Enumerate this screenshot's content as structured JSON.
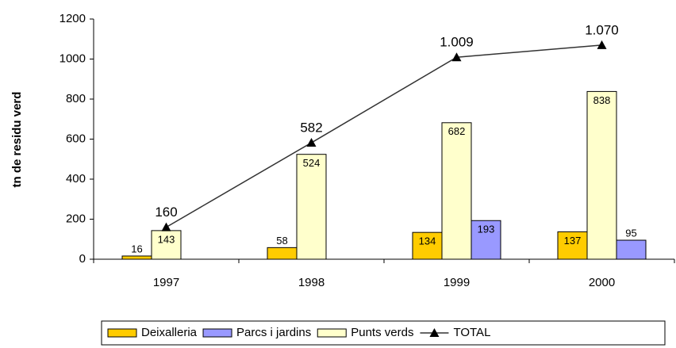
{
  "chart_data": {
    "type": "bar",
    "y_label": "tn de residu verd",
    "categories": [
      "1997",
      "1998",
      "1999",
      "2000"
    ],
    "series": [
      {
        "name": "Deixalleria",
        "color": "#ffcc00",
        "values": [
          16,
          58,
          134,
          137
        ]
      },
      {
        "name": "Parcs i jardins",
        "color": "#9999ff",
        "values": [
          null,
          null,
          193,
          95
        ]
      },
      {
        "name": "Punts verds",
        "color": "#ffffcc",
        "values": [
          143,
          524,
          682,
          838
        ]
      },
      {
        "name": "TOTAL",
        "type": "line",
        "color": "#333333",
        "values": [
          160,
          582,
          1009,
          1070
        ],
        "value_labels": [
          "160",
          "582",
          "1.009",
          "1.070"
        ]
      }
    ],
    "ylim": [
      0,
      1200
    ],
    "yticks": [
      0,
      200,
      400,
      600,
      800,
      1000,
      1200
    ]
  }
}
